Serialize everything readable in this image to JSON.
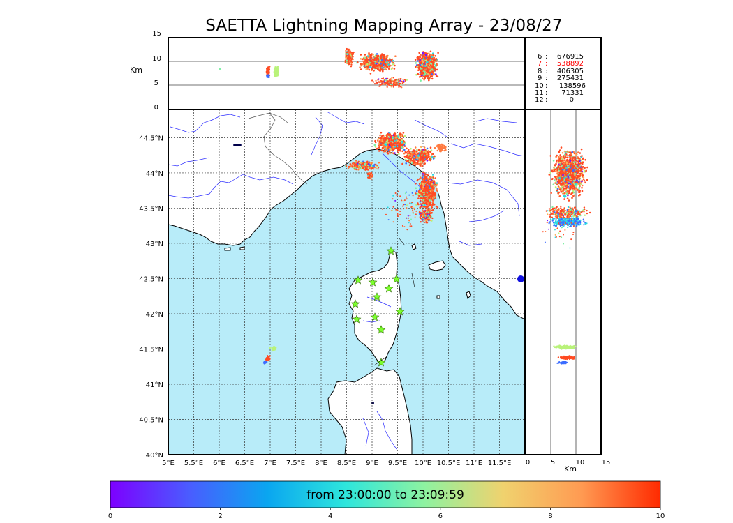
{
  "title": "SAETTA Lightning Mapping Array - 23/08/27",
  "colors": {
    "sea": "#b8ecf9",
    "land": "#ffffff",
    "coast": "#000000",
    "rivers": "#2c2cff",
    "borders": "#555555",
    "grid": "#333333",
    "star_fill": "#7dff2e",
    "highlight_row": "#ff0000"
  },
  "panels": {
    "altitude_time": {
      "ylabel": "Km",
      "yticks": [
        "15",
        "10",
        "5",
        "0"
      ]
    },
    "altitude_lon": {
      "xlabel": "Km",
      "xticks": [
        "0",
        "5",
        "10",
        "15"
      ]
    }
  },
  "map": {
    "lon_ticks": [
      "5°E",
      "5.5°E",
      "6°E",
      "6.5°E",
      "7°E",
      "7.5°E",
      "8°E",
      "8.5°E",
      "9°E",
      "9.5°E",
      "10°E",
      "10.5°E",
      "11°E",
      "11.5°E"
    ],
    "lat_ticks": [
      "44.5°N",
      "44°N",
      "43.5°N",
      "43°N",
      "42.5°N",
      "42°N",
      "41.5°N",
      "41°N",
      "40.5°N",
      "40°N"
    ],
    "stations": 12
  },
  "stats": {
    "highlight_index": 1,
    "rows": [
      {
        "stations": "6",
        "sep": ":",
        "count": "676915"
      },
      {
        "stations": "7",
        "sep": ":",
        "count": "538892"
      },
      {
        "stations": "8",
        "sep": ":",
        "count": "406305"
      },
      {
        "stations": "9",
        "sep": ":",
        "count": "275431"
      },
      {
        "stations": "10",
        "sep": ":",
        "count": "138596"
      },
      {
        "stations": "11",
        "sep": ":",
        "count": "71331"
      },
      {
        "stations": "12",
        "sep": ":",
        "count": "0"
      }
    ]
  },
  "colorbar": {
    "label": "from 23:00:00 to 23:09:59",
    "ticks": [
      "0",
      "2",
      "4",
      "6",
      "8",
      "10"
    ],
    "stops": [
      "#7d00ff",
      "#4a5cff",
      "#0aa6f0",
      "#2ee6dc",
      "#8ef2a0",
      "#f0d26e",
      "#ff9a52",
      "#ff2a00"
    ]
  },
  "lightning_palette": [
    "#7a10ff",
    "#3b6cff",
    "#2ad7e2",
    "#7df0a4",
    "#b9f27a",
    "#ffb05a",
    "#ff7a40",
    "#ff4a22"
  ]
}
